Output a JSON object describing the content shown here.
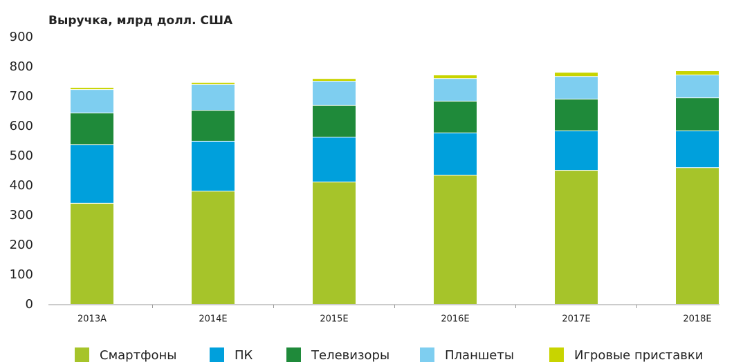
{
  "chart_data": {
    "type": "stacked_bar",
    "title": "Выручка, млрд долл. США",
    "categories": [
      "2013A",
      "2014E",
      "2015E",
      "2016E",
      "2017E",
      "2018E"
    ],
    "series": [
      {
        "name": "Смартфоны",
        "color": "#a6c42a",
        "values": [
          340,
          381,
          412,
          435,
          451,
          460
        ]
      },
      {
        "name": "ПК",
        "color": "#00a0dc",
        "values": [
          197,
          168,
          151,
          142,
          133,
          124
        ]
      },
      {
        "name": "Телевизоры",
        "color": "#1f8a3a",
        "values": [
          107,
          104,
          107,
          107,
          107,
          111
        ]
      },
      {
        "name": "Планшеты",
        "color": "#7ecef0",
        "values": [
          79,
          87,
          81,
          76,
          76,
          77
        ]
      },
      {
        "name": "Игровые приставки",
        "color": "#c8d400",
        "values": [
          7,
          7,
          9,
          12,
          14,
          14
        ]
      }
    ],
    "ylim": [
      0,
      900
    ],
    "yticks": [
      0,
      100,
      200,
      300,
      400,
      500,
      600,
      700,
      800,
      900
    ],
    "grid": false
  }
}
